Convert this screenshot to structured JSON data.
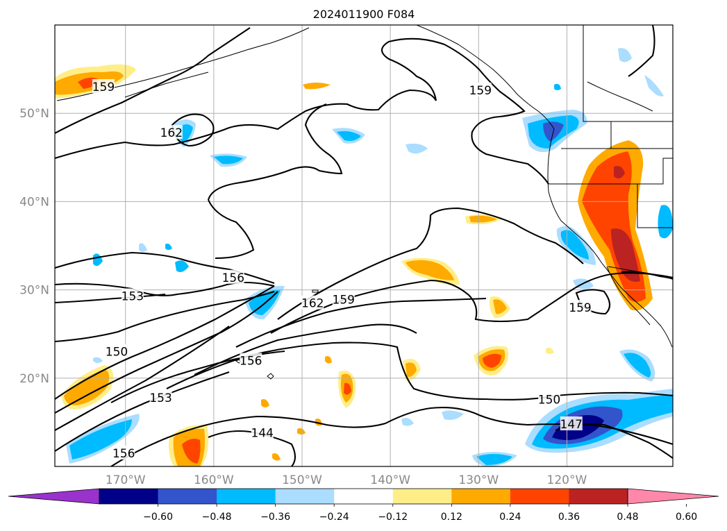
{
  "title": "2024011900 F084",
  "axes": {
    "lon_ticks": [
      {
        "lon": -170,
        "label": "170°W"
      },
      {
        "lon": -160,
        "label": "160°W"
      },
      {
        "lon": -150,
        "label": "150°W"
      },
      {
        "lon": -140,
        "label": "140°W"
      },
      {
        "lon": -130,
        "label": "130°W"
      },
      {
        "lon": -120,
        "label": "120°W"
      }
    ],
    "lat_ticks": [
      {
        "lat": 50,
        "label": "50°N"
      },
      {
        "lat": 40,
        "label": "40°N"
      },
      {
        "lat": 30,
        "label": "30°N"
      },
      {
        "lat": 20,
        "label": "20°N"
      }
    ],
    "lon_range": [
      -178,
      -108
    ],
    "lat_range": [
      10,
      60
    ]
  },
  "colorbar": {
    "extend": "both",
    "bins": [
      {
        "color": "#9933cc"
      },
      {
        "color": "#000088"
      },
      {
        "color": "#3355cc"
      },
      {
        "color": "#00bbff"
      },
      {
        "color": "#aaddff"
      },
      {
        "color": "#ffffff"
      },
      {
        "color": "#ffee88"
      },
      {
        "color": "#ffaa00"
      },
      {
        "color": "#ff4400"
      },
      {
        "color": "#bb2222"
      },
      {
        "color": "#ff88aa"
      }
    ],
    "ticks": [
      "−0.60",
      "−0.48",
      "−0.36",
      "−0.24",
      "−0.12",
      "0.12",
      "0.24",
      "0.36",
      "0.48",
      "0.60"
    ]
  },
  "contour_labels": [
    {
      "text": "159",
      "lon": -172.5,
      "lat": 53.0
    },
    {
      "text": "159",
      "lon": -129.8,
      "lat": 52.6
    },
    {
      "text": "162",
      "lon": -164.8,
      "lat": 47.8
    },
    {
      "text": "156",
      "lon": -157.8,
      "lat": 31.4
    },
    {
      "text": "153",
      "lon": -169.2,
      "lat": 29.3
    },
    {
      "text": "162",
      "lon": -148.8,
      "lat": 28.5
    },
    {
      "text": "159",
      "lon": -145.3,
      "lat": 28.9
    },
    {
      "text": "159",
      "lon": -118.5,
      "lat": 28.0
    },
    {
      "text": "150",
      "lon": -171.0,
      "lat": 23.0
    },
    {
      "text": "156",
      "lon": -155.8,
      "lat": 22.0
    },
    {
      "text": "153",
      "lon": -166.0,
      "lat": 17.8
    },
    {
      "text": "150",
      "lon": -122.0,
      "lat": 17.6
    },
    {
      "text": "147",
      "lon": -119.5,
      "lat": 14.8
    },
    {
      "text": "144",
      "lon": -154.5,
      "lat": 13.8
    },
    {
      "text": "156",
      "lon": -170.2,
      "lat": 11.5
    }
  ]
}
